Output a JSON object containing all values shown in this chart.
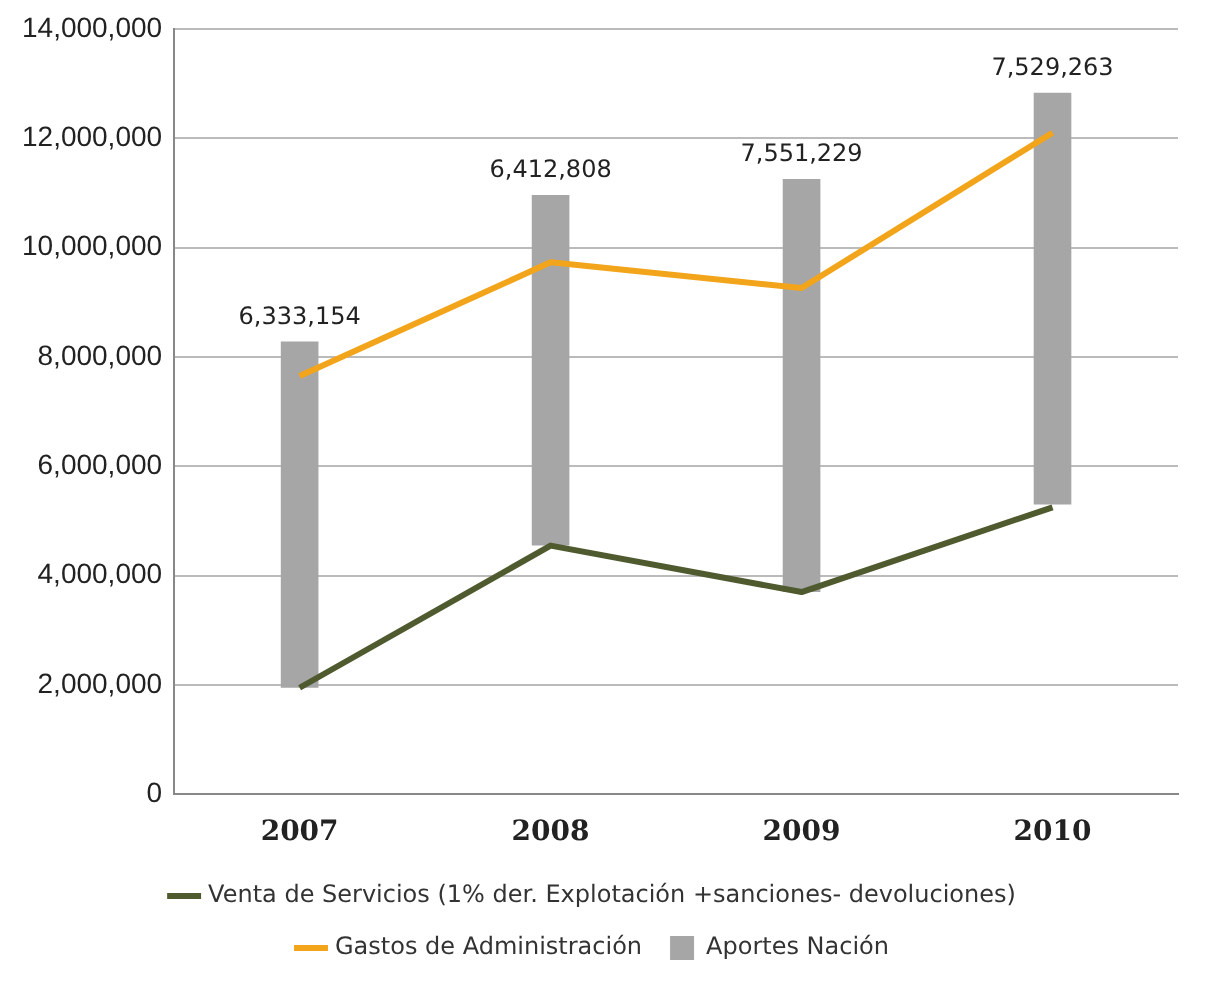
{
  "chart_data": {
    "type": "bar",
    "categories": [
      "2007",
      "2008",
      "2009",
      "2010"
    ],
    "series": [
      {
        "name": "Venta de Servicios (1% der. Explotación +sanciones- devoluciones)",
        "type": "line",
        "color": "#4f5a2f",
        "values": [
          1950000,
          4550000,
          3700000,
          5250000
        ]
      },
      {
        "name": "Gastos de Administración",
        "type": "line",
        "color": "#f2a51a",
        "values": [
          7650000,
          9730000,
          9260000,
          12100000
        ]
      },
      {
        "name": "Aportes Nación",
        "color": "#a6a6a6",
        "values": [
          6333154,
          6412808,
          7551229,
          7529263
        ],
        "base": [
          1950000,
          4550000,
          3700000,
          5300000
        ],
        "value_labels": [
          "6,333,154",
          "6,412,808",
          "7,551,229",
          "7,529,263"
        ]
      }
    ],
    "ylim": [
      0,
      14000000
    ],
    "yticks": [
      0,
      {
        "value": 2000000,
        "label": "2,000,000"
      },
      {
        "value": 4000000,
        "label": "4,000,000"
      },
      {
        "value": 6000000,
        "label": "6,000,000"
      },
      {
        "value": 8000000,
        "label": "8,000,000"
      },
      {
        "value": 10000000,
        "label": "10,000,000"
      },
      {
        "value": 12000000,
        "label": "12,000,000"
      },
      {
        "value": 14000000,
        "label": "14,000,000"
      }
    ],
    "grid": "y",
    "legend": "bottom",
    "marker": "none"
  }
}
